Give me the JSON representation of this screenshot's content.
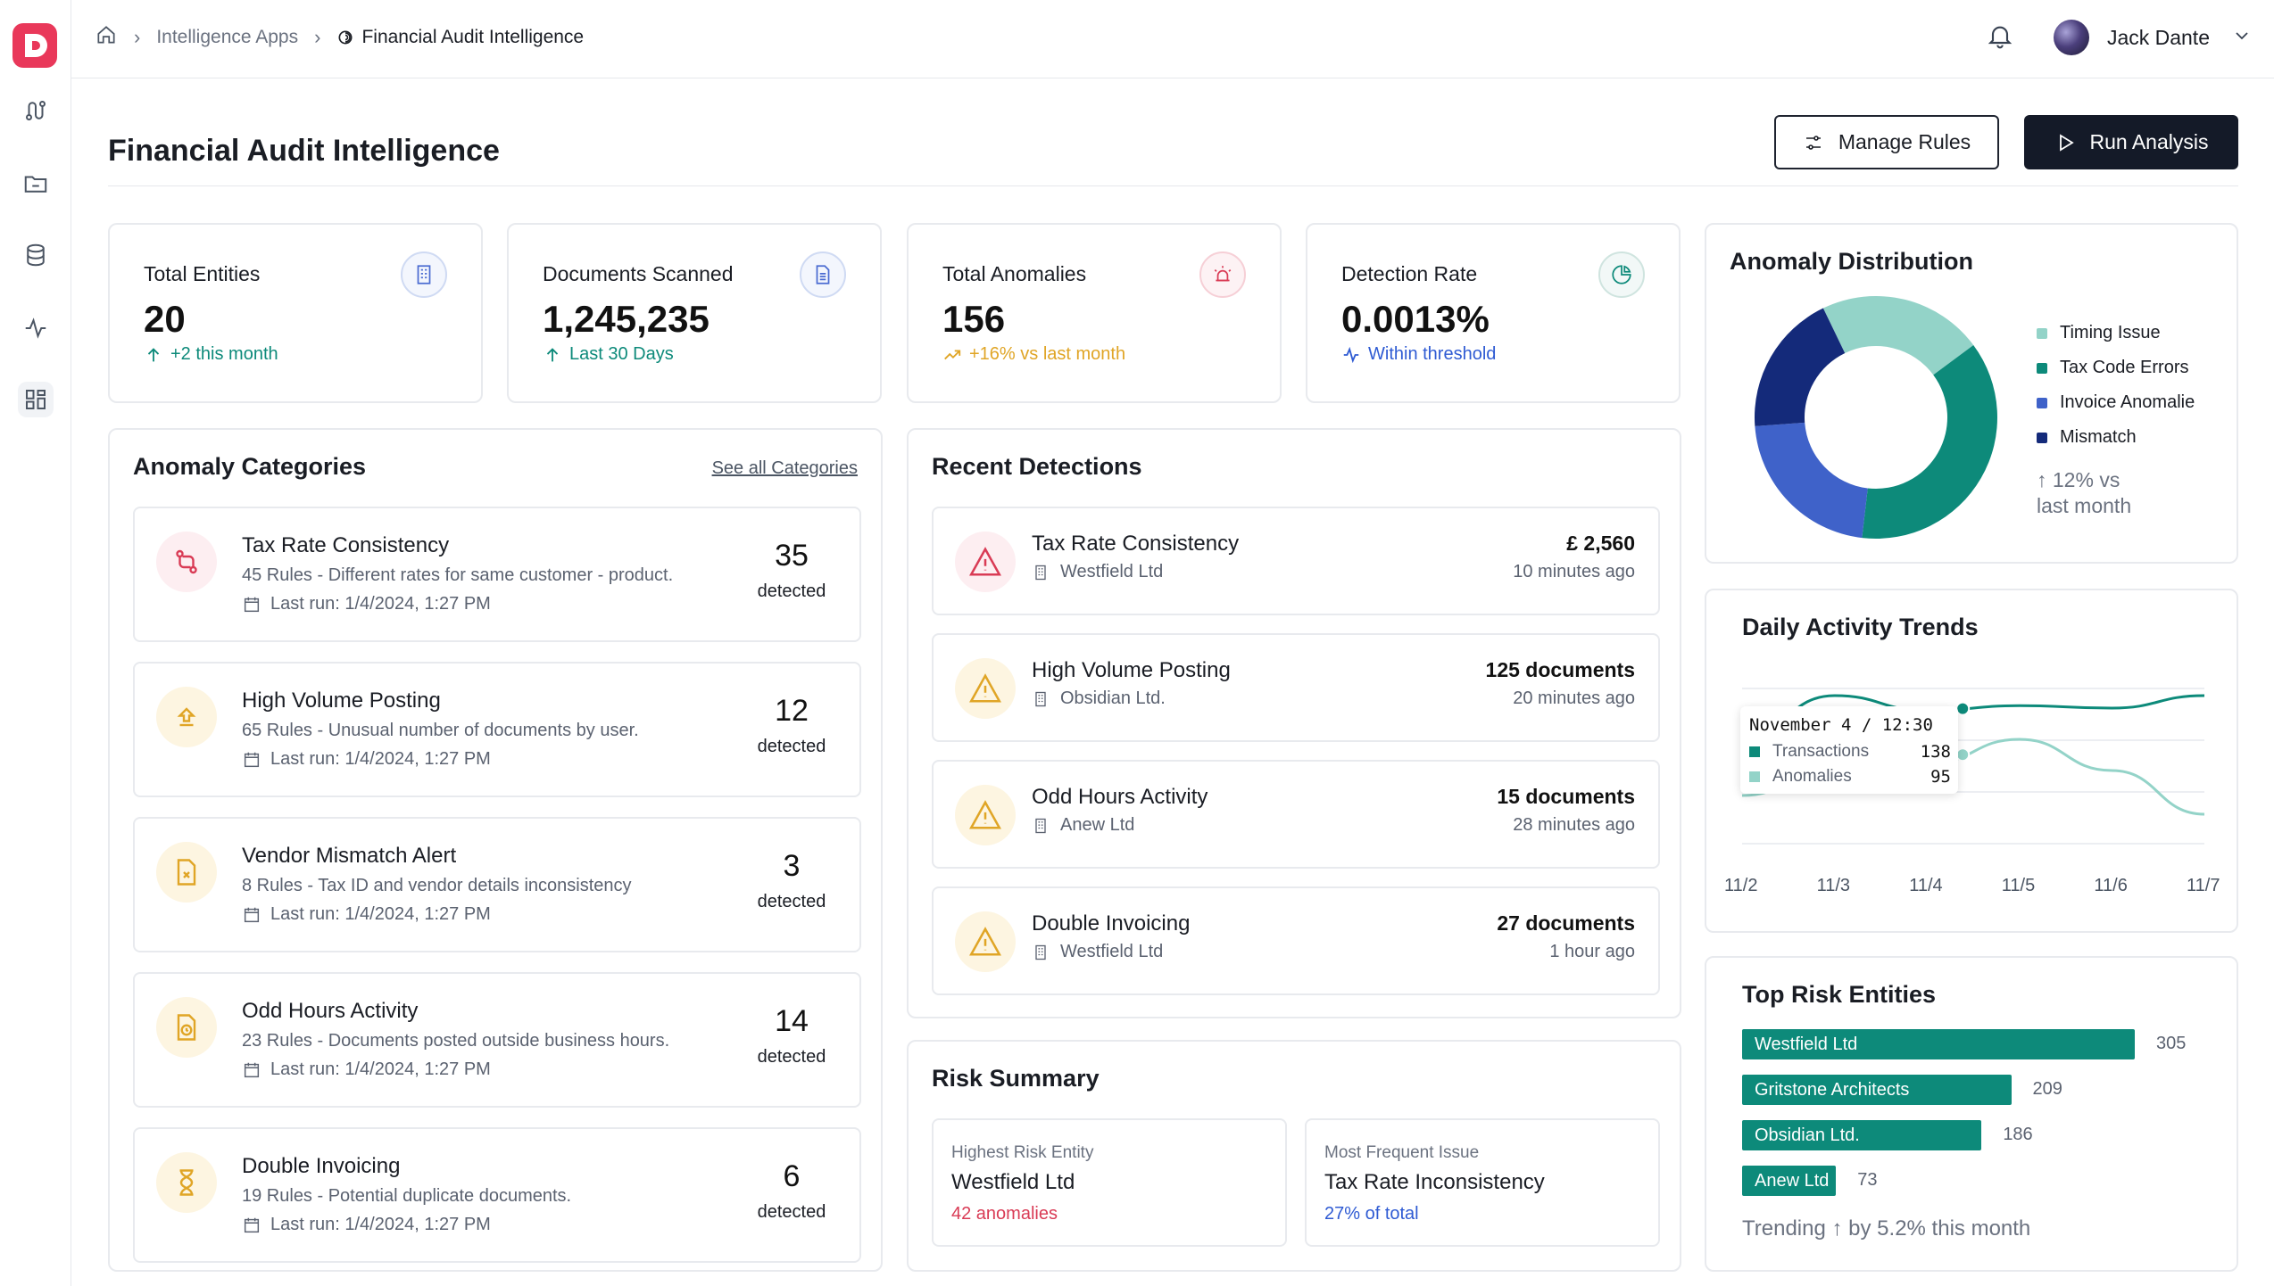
{
  "breadcrumb": {
    "parent": "Intelligence Apps",
    "current": "Financial Audit Intelligence"
  },
  "user": {
    "name": "Jack Dante"
  },
  "page": {
    "title": "Financial Audit Intelligence"
  },
  "actions": {
    "manage_rules": "Manage Rules",
    "run_analysis": "Run Analysis"
  },
  "stats": [
    {
      "label": "Total Entities",
      "value": "20",
      "sub": "+2 this month",
      "sub_color": "#0d8a7a",
      "icon": "building-icon"
    },
    {
      "label": "Documents Scanned",
      "value": "1,245,235",
      "sub": "Last 30 Days",
      "sub_color": "#0d8a7a",
      "icon": "document-icon"
    },
    {
      "label": "Total Anomalies",
      "value": "156",
      "sub": "+16% vs last month",
      "sub_color": "#e0a526",
      "icon": "alarm-icon"
    },
    {
      "label": "Detection Rate",
      "value": "0.0013%",
      "sub": "Within threshold",
      "sub_color": "#2f5bd3",
      "icon": "pie-icon"
    }
  ],
  "categories": {
    "title": "Anomaly Categories",
    "see_all": "See all Categories",
    "items": [
      {
        "name": "Tax Rate Consistency",
        "desc": "45 Rules - Different rates for same customer - product.",
        "last_run": "Last run: 1/4/2024, 1:27 PM",
        "count": "35",
        "detected": "detected",
        "icon": "swap-icon",
        "tone": "red"
      },
      {
        "name": "High Volume Posting",
        "desc": "65 Rules - Unusual number of documents by user.",
        "last_run": "Last run: 1/4/2024, 1:27 PM",
        "count": "12",
        "detected": "detected",
        "icon": "upload-icon",
        "tone": "amber"
      },
      {
        "name": "Vendor Mismatch Alert",
        "desc": "8 Rules - Tax ID and vendor details inconsistency",
        "last_run": "Last run: 1/4/2024, 1:27 PM",
        "count": "3",
        "detected": "detected",
        "icon": "file-x-icon",
        "tone": "amber"
      },
      {
        "name": "Odd Hours Activity",
        "desc": "23 Rules - Documents posted outside business hours.",
        "last_run": "Last run: 1/4/2024, 1:27 PM",
        "count": "14",
        "detected": "detected",
        "icon": "clock-file-icon",
        "tone": "amber"
      },
      {
        "name": "Double Invoicing",
        "desc": "19 Rules - Potential duplicate documents.",
        "last_run": "Last run: 1/4/2024, 1:27 PM",
        "count": "6",
        "detected": "detected",
        "icon": "hourglass-icon",
        "tone": "amber"
      }
    ]
  },
  "detections": {
    "title": "Recent Detections",
    "items": [
      {
        "name": "Tax Rate Consistency",
        "entity": "Westfield Ltd",
        "amount": "£ 2,560",
        "time": "10 minutes ago",
        "tone": "red"
      },
      {
        "name": "High Volume Posting",
        "entity": "Obsidian Ltd.",
        "amount": "125 documents",
        "time": "20 minutes ago",
        "tone": "amber"
      },
      {
        "name": "Odd Hours Activity",
        "entity": "Anew Ltd",
        "amount": "15 documents",
        "time": "28 minutes ago",
        "tone": "amber"
      },
      {
        "name": "Double Invoicing",
        "entity": "Westfield Ltd",
        "amount": "27 documents",
        "time": "1 hour ago",
        "tone": "amber"
      }
    ]
  },
  "risk_summary": {
    "title": "Risk Summary",
    "highest": {
      "label": "Highest Risk Entity",
      "value": "Westfield Ltd",
      "sub": "42 anomalies"
    },
    "frequent": {
      "label": "Most Frequent Issue",
      "value": "Tax Rate Inconsistency",
      "sub": "27% of total"
    }
  },
  "distribution": {
    "title": "Anomaly Distribution",
    "note_line1": "↑ 12% vs",
    "note_line2": "last month"
  },
  "trends": {
    "title": "Daily Activity Trends",
    "tooltip": {
      "title": "November 4 / 12:30",
      "rows": [
        {
          "label": "Transactions",
          "value": "138"
        },
        {
          "label": "Anomalies",
          "value": "95"
        }
      ]
    }
  },
  "top_risk": {
    "title": "Top Risk Entities",
    "trending": "Trending ↑ by 5.2% this month"
  },
  "colors": {
    "teal": "#0d8a7a",
    "light_teal": "#93d3c8",
    "blue": "#3f62c9",
    "navy": "#142a7a",
    "red": "#d93b55",
    "amber": "#e0a526"
  },
  "chart_data": [
    {
      "type": "pie",
      "title": "Anomaly Distribution",
      "labels": [
        "Timing Issue",
        "Tax Code Errors",
        "Invoice Anomalie",
        "Mismatch"
      ],
      "values": [
        22,
        37,
        22,
        19
      ],
      "colors": [
        "#93d3c8",
        "#0d8a7a",
        "#3f62c9",
        "#142a7a"
      ],
      "legend": "right"
    },
    {
      "type": "line",
      "title": "Daily Activity Trends",
      "categories": [
        "11/2",
        "11/3",
        "11/4",
        "11/5",
        "11/6",
        "11/7"
      ],
      "series": [
        {
          "name": "Transactions",
          "values": [
            118,
            150,
            138,
            142,
            140,
            150
          ],
          "color": "#0d8a7a"
        },
        {
          "name": "Anomalies",
          "values": [
            70,
            92,
            95,
            115,
            90,
            55
          ],
          "color": "#93d3c8"
        }
      ],
      "ylim": [
        20,
        170
      ],
      "grid": true
    },
    {
      "type": "bar",
      "orientation": "horizontal",
      "title": "Top Risk Entities",
      "categories": [
        "Westfield Ltd",
        "Gritstone Architects",
        "Obsidian Ltd.",
        "Anew Ltd"
      ],
      "values": [
        305,
        209,
        186,
        73
      ],
      "xlim": [
        0,
        305
      ],
      "color": "#0d8a7a"
    }
  ]
}
